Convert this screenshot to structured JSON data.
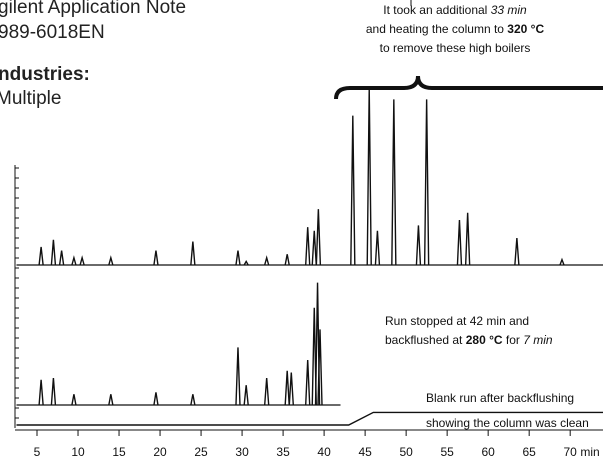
{
  "header": {
    "lines": [
      "gilent Application Note",
      "989-6018EN"
    ],
    "industries_label": "ndustries:",
    "industries_value": "Multiple"
  },
  "chart_data": {
    "type": "chromatogram",
    "xlim": [
      2.5,
      74
    ],
    "xticks": [
      5,
      10,
      15,
      20,
      25,
      30,
      35,
      40,
      45,
      50,
      55,
      60,
      65,
      70
    ],
    "x_unit": "min",
    "ylim": [
      0,
      100
    ],
    "annotations": [
      {
        "anchor": "middle",
        "lines": [
          [
            {
              "text": "It took an additional ",
              "style": "normal"
            },
            {
              "text": "33 min",
              "style": "italic"
            }
          ],
          [
            {
              "text": "and heating the column to ",
              "style": "normal"
            },
            {
              "text": "320 °C",
              "style": "bold"
            }
          ],
          [
            {
              "text": "to remove these high boilers",
              "style": "normal"
            }
          ]
        ]
      },
      {
        "anchor": "start",
        "lines": [
          [
            {
              "text": "Run stopped at 42 min and",
              "style": "normal"
            }
          ],
          [
            {
              "text": "backflushed at ",
              "style": "normal"
            },
            {
              "text": "280 °C",
              "style": "bold"
            },
            {
              "text": " for ",
              "style": "normal"
            },
            {
              "text": "7 min",
              "style": "italic"
            }
          ]
        ]
      },
      {
        "anchor": "start",
        "lines": [
          [
            {
              "text": "Blank run after backflushing",
              "style": "normal"
            }
          ],
          [
            {
              "text": "showing the column was clean",
              "style": "normal"
            }
          ]
        ]
      }
    ],
    "series": [
      {
        "kind": "peaks",
        "x_end": 74,
        "x": [
          5.5,
          7,
          8,
          9.5,
          10.5,
          14,
          19.5,
          24,
          29.5,
          30.5,
          33,
          35.5,
          38,
          38.8,
          39.3,
          43.5,
          45.5,
          46.5,
          48.5,
          51.5,
          52.5,
          56.5,
          57.5,
          63.5,
          69
        ],
        "values": [
          10,
          14,
          8,
          4,
          4,
          4,
          8,
          13,
          8,
          2,
          4,
          6,
          21,
          19,
          31,
          83,
          98,
          19,
          92,
          22,
          92,
          25,
          29,
          15,
          3
        ]
      },
      {
        "kind": "peaks",
        "x_end": 42,
        "x": [
          5.5,
          7,
          9.5,
          14,
          19.5,
          24,
          29.5,
          30.5,
          33,
          35.5,
          36,
          38,
          38.8,
          39.2,
          39.5
        ],
        "values": [
          14,
          15,
          6,
          6,
          7,
          6,
          32,
          11,
          15,
          19,
          18,
          25,
          54,
          68,
          42
        ]
      },
      {
        "kind": "line",
        "x": [
          2.5,
          43,
          46,
          74
        ],
        "values": [
          0,
          0,
          7,
          7
        ]
      }
    ]
  }
}
